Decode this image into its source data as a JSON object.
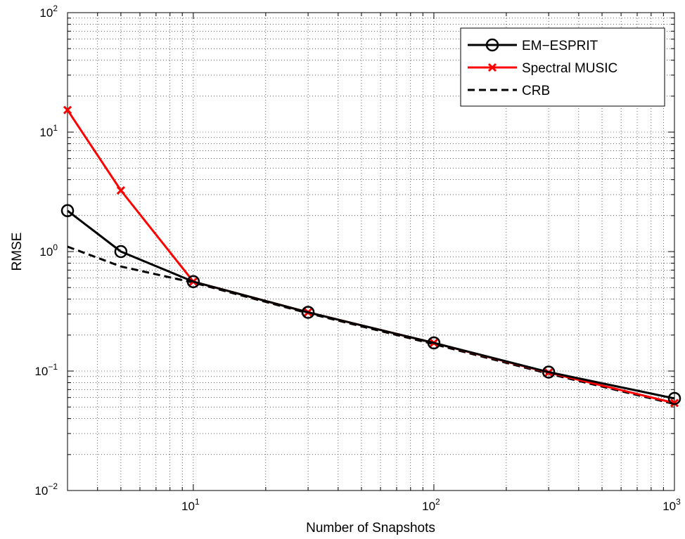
{
  "chart_data": {
    "type": "line",
    "title": "",
    "xlabel": "Number of Snapshots",
    "ylabel": "RMSE",
    "x_scale": "log",
    "y_scale": "log",
    "xlim": [
      3,
      1000
    ],
    "ylim": [
      0.01,
      100
    ],
    "x_ticks": [
      {
        "value": 10,
        "base": "10",
        "exp": "1"
      },
      {
        "value": 100,
        "base": "10",
        "exp": "2"
      },
      {
        "value": 1000,
        "base": "10",
        "exp": "3"
      }
    ],
    "y_ticks": [
      {
        "value": 0.01,
        "base": "10",
        "exp": "−2"
      },
      {
        "value": 0.1,
        "base": "10",
        "exp": "−1"
      },
      {
        "value": 1,
        "base": "10",
        "exp": "0"
      },
      {
        "value": 10,
        "base": "10",
        "exp": "1"
      },
      {
        "value": 100,
        "base": "10",
        "exp": "2"
      }
    ],
    "grid": true,
    "legend_position": "top-right",
    "series": [
      {
        "name": "EM−ESPRIT",
        "color": "#000000",
        "line_style": "solid",
        "marker": "circle",
        "x": [
          3,
          5,
          10,
          30,
          100,
          300,
          1000
        ],
        "y": [
          2.2,
          1.0,
          0.56,
          0.31,
          0.172,
          0.098,
          0.059
        ]
      },
      {
        "name": "Spectral MUSIC",
        "color": "#ff0000",
        "line_style": "solid",
        "marker": "x",
        "x": [
          3,
          5,
          10,
          30,
          100,
          300,
          1000
        ],
        "y": [
          15.3,
          3.25,
          0.56,
          0.31,
          0.172,
          0.097,
          0.054
        ]
      },
      {
        "name": "CRB",
        "color": "#000000",
        "line_style": "dashed",
        "marker": "none",
        "x": [
          3,
          5,
          10,
          30,
          100,
          300,
          1000
        ],
        "y": [
          1.1,
          0.75,
          0.55,
          0.305,
          0.168,
          0.095,
          0.053
        ]
      }
    ]
  }
}
